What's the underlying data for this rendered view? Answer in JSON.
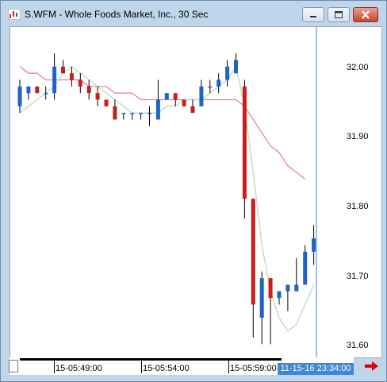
{
  "window": {
    "title": "S.WFM - Whole Foods Market, Inc., 30 Sec",
    "icon": "chart-icon",
    "controls": [
      "minimize-icon",
      "maximize-icon",
      "close-icon"
    ]
  },
  "chart_data": {
    "type": "candlestick",
    "title": "",
    "ylim": [
      31.58,
      32.08
    ],
    "y_ticks": [
      "32.00",
      "31.90",
      "31.80",
      "31.70",
      "31.60"
    ],
    "x_ticks": [
      "15-05:49:00",
      "15-05:54:00",
      "15-05:59:00"
    ],
    "cursor_time_label": "11-15-16 23:34:00",
    "colors": {
      "up": "#1e63c8",
      "down": "#c81e1e",
      "ma_fast": "#b9dcb9",
      "ma_slow": "#e87fae",
      "cursor": "#3f86d4"
    },
    "candles": [
      {
        "o": 31.96,
        "h": 32.0,
        "l": 31.95,
        "c": 31.99
      },
      {
        "o": 31.98,
        "h": 31.99,
        "l": 31.97,
        "c": 31.99
      },
      {
        "o": 31.99,
        "h": 31.99,
        "l": 31.98,
        "c": 31.98
      },
      {
        "o": 31.98,
        "h": 31.99,
        "l": 31.97,
        "c": 31.98
      },
      {
        "o": 31.98,
        "h": 32.04,
        "l": 31.97,
        "c": 32.02
      },
      {
        "o": 32.02,
        "h": 32.03,
        "l": 32.01,
        "c": 32.01
      },
      {
        "o": 32.01,
        "h": 32.02,
        "l": 31.99,
        "c": 32.0
      },
      {
        "o": 32.0,
        "h": 32.01,
        "l": 31.98,
        "c": 31.99
      },
      {
        "o": 31.99,
        "h": 32.0,
        "l": 31.97,
        "c": 31.98
      },
      {
        "o": 31.98,
        "h": 31.99,
        "l": 31.96,
        "c": 31.97
      },
      {
        "o": 31.97,
        "h": 31.97,
        "l": 31.96,
        "c": 31.96
      },
      {
        "o": 31.96,
        "h": 31.97,
        "l": 31.94,
        "c": 31.94
      },
      {
        "o": 31.95,
        "h": 31.95,
        "l": 31.94,
        "c": 31.95
      },
      {
        "o": 31.95,
        "h": 31.95,
        "l": 31.94,
        "c": 31.95
      },
      {
        "o": 31.95,
        "h": 31.95,
        "l": 31.94,
        "c": 31.95
      },
      {
        "o": 31.95,
        "h": 31.96,
        "l": 31.93,
        "c": 31.95
      },
      {
        "o": 31.94,
        "h": 32.0,
        "l": 31.94,
        "c": 31.97
      },
      {
        "o": 31.97,
        "h": 31.98,
        "l": 31.97,
        "c": 31.98
      },
      {
        "o": 31.98,
        "h": 31.98,
        "l": 31.96,
        "c": 31.97
      },
      {
        "o": 31.97,
        "h": 31.97,
        "l": 31.96,
        "c": 31.96
      },
      {
        "o": 31.96,
        "h": 31.97,
        "l": 31.95,
        "c": 31.95
      },
      {
        "o": 31.96,
        "h": 32.0,
        "l": 31.96,
        "c": 31.99
      },
      {
        "o": 31.99,
        "h": 32.0,
        "l": 31.98,
        "c": 31.99
      },
      {
        "o": 31.99,
        "h": 32.01,
        "l": 31.98,
        "c": 32.0
      },
      {
        "o": 32.0,
        "h": 32.03,
        "l": 31.99,
        "c": 32.02
      },
      {
        "o": 32.01,
        "h": 32.04,
        "l": 32.01,
        "c": 32.03
      },
      {
        "o": 31.99,
        "h": 32.0,
        "l": 31.79,
        "c": 31.82
      },
      {
        "o": 31.82,
        "h": 31.82,
        "l": 31.61,
        "c": 31.66
      },
      {
        "o": 31.64,
        "h": 31.71,
        "l": 31.6,
        "c": 31.7
      },
      {
        "o": 31.7,
        "h": 31.7,
        "l": 31.6,
        "c": 31.67
      },
      {
        "o": 31.67,
        "h": 31.68,
        "l": 31.66,
        "c": 31.68
      },
      {
        "o": 31.68,
        "h": 31.69,
        "l": 31.65,
        "c": 31.69
      },
      {
        "o": 31.68,
        "h": 31.73,
        "l": 31.68,
        "c": 31.69
      },
      {
        "o": 31.69,
        "h": 31.75,
        "l": 31.69,
        "c": 31.74
      },
      {
        "o": 31.74,
        "h": 31.78,
        "l": 31.72,
        "c": 31.76
      }
    ],
    "ma_fast": [
      31.95,
      31.96,
      31.97,
      31.98,
      31.99,
      32.01,
      32.02,
      32.01,
      32.0,
      31.99,
      31.98,
      31.97,
      31.96,
      31.95,
      31.95,
      31.95,
      31.95,
      31.96,
      31.96,
      31.97,
      31.97,
      31.97,
      31.98,
      31.99,
      32.0,
      32.02,
      31.96,
      31.86,
      31.75,
      31.68,
      31.64,
      31.62,
      31.63,
      31.66,
      31.69
    ],
    "ma_slow": [
      32.02,
      32.01,
      32.01,
      32.0,
      32.0,
      32.0,
      32.0,
      32.0,
      31.99,
      31.99,
      31.99,
      31.98,
      31.98,
      31.98,
      31.97,
      31.97,
      31.97,
      31.97,
      31.97,
      31.97,
      31.97,
      31.97,
      31.97,
      31.97,
      31.97,
      31.97,
      31.96,
      31.94,
      31.92,
      31.9,
      31.89,
      31.87,
      31.86,
      31.85,
      null
    ]
  }
}
